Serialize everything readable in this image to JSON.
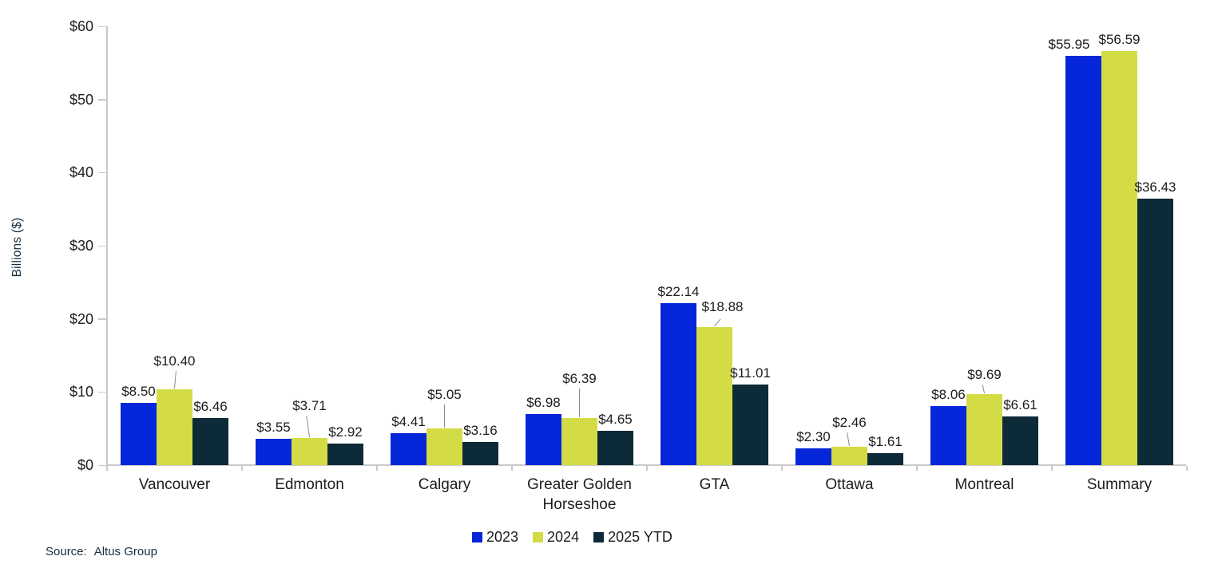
{
  "chart_data": {
    "type": "bar",
    "title": "",
    "xlabel": "",
    "ylabel": "Billions ($)",
    "ylim": [
      0,
      60
    ],
    "ytick_interval": 10,
    "ytick_labels": [
      "$0",
      "$10",
      "$20",
      "$30",
      "$40",
      "$50",
      "$60"
    ],
    "grid": false,
    "legend_position": "bottom",
    "categories": [
      "Vancouver",
      "Edmonton",
      "Calgary",
      "Greater Golden Horseshoe",
      "GTA",
      "Ottawa",
      "Montreal",
      "Summary"
    ],
    "category_label_lines": [
      [
        "Vancouver"
      ],
      [
        "Edmonton"
      ],
      [
        "Calgary"
      ],
      [
        "Greater Golden",
        "Horseshoe"
      ],
      [
        "GTA"
      ],
      [
        "Ottawa"
      ],
      [
        "Montreal"
      ],
      [
        "Summary"
      ]
    ],
    "series": [
      {
        "name": "2023",
        "color": "#0626D9",
        "values": [
          8.5,
          3.55,
          4.41,
          6.98,
          22.14,
          2.3,
          8.06,
          55.95
        ],
        "labels": [
          "$8.50",
          "$3.55",
          "$4.41",
          "$6.98",
          "$22.14",
          "$2.30",
          "$8.06",
          "$55.95"
        ]
      },
      {
        "name": "2024",
        "color": "#D4DC45",
        "values": [
          10.4,
          3.71,
          5.05,
          6.39,
          18.88,
          2.46,
          9.69,
          56.59
        ],
        "labels": [
          "$10.40",
          "$3.71",
          "$5.05",
          "$6.39",
          "$18.88",
          "$2.46",
          "$9.69",
          "$56.59"
        ]
      },
      {
        "name": "2025 YTD",
        "color": "#0D2A38",
        "values": [
          6.46,
          2.92,
          3.16,
          4.65,
          11.01,
          1.61,
          6.61,
          36.43
        ],
        "labels": [
          "$6.46",
          "$2.92",
          "$3.16",
          "$4.65",
          "$11.01",
          "$1.61",
          "$6.61",
          "$36.43"
        ]
      }
    ]
  },
  "source": {
    "label": "Source:",
    "value": "Altus Group"
  },
  "colors": {
    "axis": "#c9c9c9",
    "text_dark": "#1d1d1d",
    "text_navy": "#14303E",
    "series_2023": "#0626D9",
    "series_2024": "#D4DC45",
    "series_2025ytd": "#0D2A38"
  }
}
